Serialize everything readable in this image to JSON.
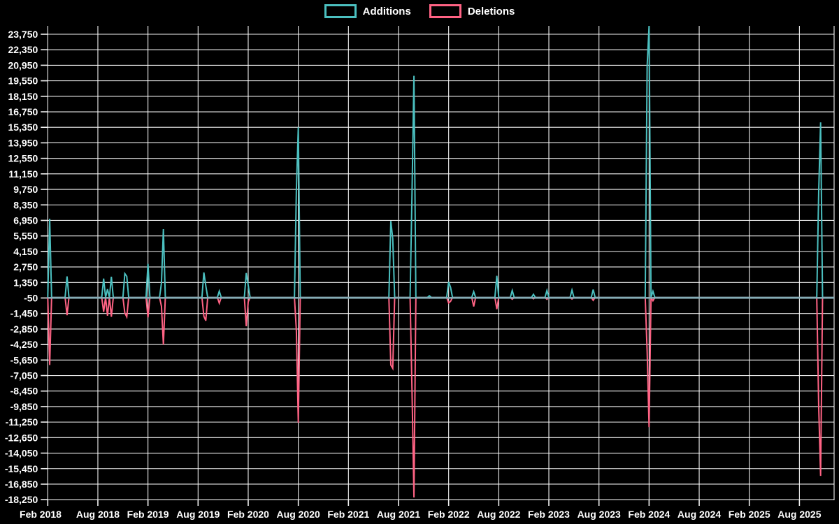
{
  "legend": {
    "items": [
      {
        "label": "Additions",
        "color": "#4bc0c0"
      },
      {
        "label": "Deletions",
        "color": "#ff6384"
      }
    ]
  },
  "chart_data": {
    "type": "line",
    "title": "",
    "xlabel": "",
    "ylabel": "",
    "background": "#000000",
    "grid": true,
    "legend_position": "top",
    "x_tick_labels": [
      "Feb 2018",
      "Aug 2018",
      "Feb 2019",
      "Aug 2019",
      "Feb 2020",
      "Aug 2020",
      "Feb 2021",
      "Aug 2021",
      "Feb 2022",
      "Aug 2022",
      "Feb 2023",
      "Aug 2023",
      "Feb 2024",
      "Aug 2024",
      "Feb 2025",
      "Aug 2025"
    ],
    "y_ticks": [
      23750,
      22350,
      20950,
      19550,
      18150,
      16750,
      15350,
      13950,
      12550,
      11150,
      9750,
      8350,
      6950,
      5550,
      4150,
      2750,
      1350,
      -50,
      -1450,
      -2850,
      -4250,
      -5650,
      -7050,
      -8450,
      -9850,
      -11250,
      -12650,
      -14050,
      -15450,
      -16850,
      -18250
    ],
    "ylim": [
      -18250,
      23750
    ],
    "y_tick_step": 1400,
    "weeks_total": 408,
    "weeks_per_interval": 26,
    "x_note": "weekly data; week 0 = Feb 2018 tick, 26 weeks per labeled interval, series runs past Aug 2025 tick",
    "colors": {
      "additions": "#4bc0c0",
      "deletions": "#ff6384",
      "grid": "#ffffff",
      "zero_baseline": "#87acb6"
    },
    "series": [
      {
        "name": "Additions",
        "color": "#4bc0c0",
        "baseline": 0,
        "spikes": [
          [
            1,
            7100
          ],
          [
            10,
            1900
          ],
          [
            29,
            1700
          ],
          [
            31,
            750
          ],
          [
            33,
            1870
          ],
          [
            40,
            2150
          ],
          [
            41,
            1900
          ],
          [
            52,
            3030
          ],
          [
            59,
            1300
          ],
          [
            60,
            6160
          ],
          [
            81,
            2250
          ],
          [
            82,
            1050
          ],
          [
            89,
            570
          ],
          [
            103,
            2200
          ],
          [
            104,
            1100
          ],
          [
            129,
            9700
          ],
          [
            130,
            15350
          ],
          [
            178,
            6900
          ],
          [
            179,
            5300
          ],
          [
            189,
            9400
          ],
          [
            190,
            20000
          ],
          [
            198,
            150
          ],
          [
            208,
            1400
          ],
          [
            209,
            900
          ],
          [
            221,
            520
          ],
          [
            233,
            1950
          ],
          [
            241,
            620
          ],
          [
            252,
            280
          ],
          [
            259,
            630
          ],
          [
            272,
            660
          ],
          [
            283,
            710
          ],
          [
            311,
            20900
          ],
          [
            312,
            24500
          ],
          [
            314,
            560
          ],
          [
            400,
            9500
          ],
          [
            401,
            15800
          ]
        ]
      },
      {
        "name": "Deletions",
        "color": "#ff6384",
        "baseline": 0,
        "spikes": [
          [
            1,
            -6100
          ],
          [
            10,
            -1600
          ],
          [
            29,
            -1300
          ],
          [
            31,
            -1650
          ],
          [
            33,
            -1750
          ],
          [
            40,
            -1400
          ],
          [
            41,
            -1750
          ],
          [
            52,
            -1800
          ],
          [
            59,
            -800
          ],
          [
            60,
            -4260
          ],
          [
            81,
            -1700
          ],
          [
            82,
            -2100
          ],
          [
            89,
            -520
          ],
          [
            103,
            -2600
          ],
          [
            104,
            -400
          ],
          [
            129,
            -3000
          ],
          [
            130,
            -11300
          ],
          [
            178,
            -6100
          ],
          [
            179,
            -6400
          ],
          [
            189,
            -8450
          ],
          [
            190,
            -18050
          ],
          [
            198,
            -60
          ],
          [
            208,
            -500
          ],
          [
            209,
            -350
          ],
          [
            221,
            -820
          ],
          [
            233,
            -1060
          ],
          [
            241,
            -160
          ],
          [
            252,
            -120
          ],
          [
            259,
            -170
          ],
          [
            272,
            -140
          ],
          [
            283,
            -260
          ],
          [
            311,
            -4900
          ],
          [
            312,
            -11700
          ],
          [
            314,
            -300
          ],
          [
            400,
            -9800
          ],
          [
            401,
            -16100
          ]
        ]
      }
    ]
  }
}
